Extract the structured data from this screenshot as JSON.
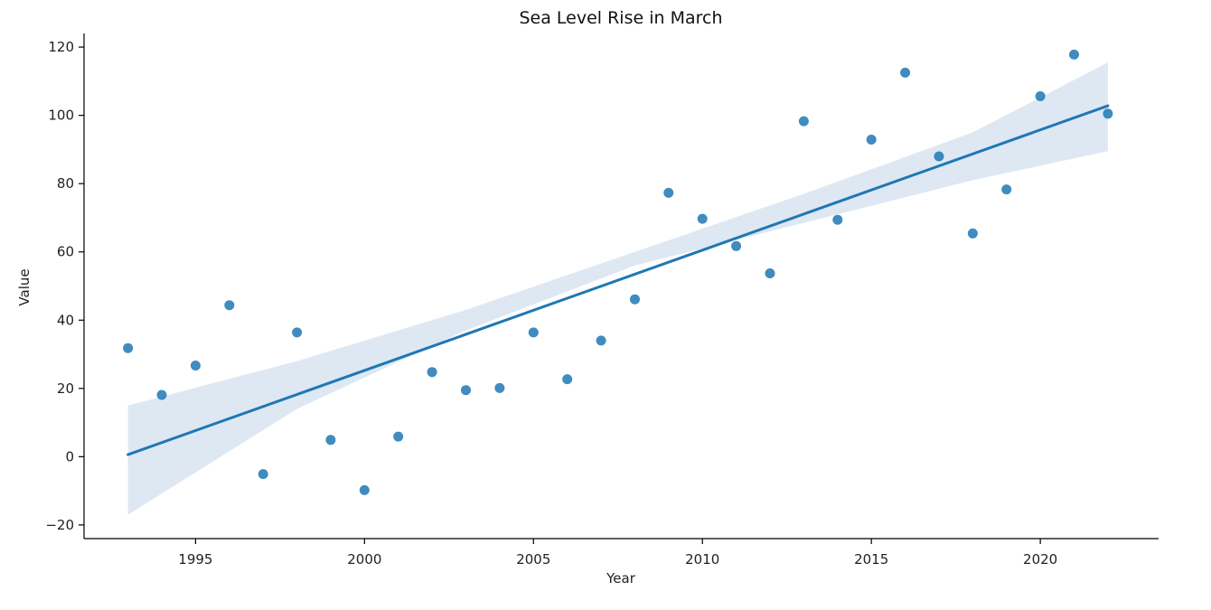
{
  "chart_data": {
    "type": "scatter",
    "title": "Sea Level Rise in March",
    "xlabel": "Year",
    "ylabel": "Value",
    "xlim": [
      1991.7,
      2023.5
    ],
    "ylim": [
      -24,
      124
    ],
    "xticks": [
      1995,
      2000,
      2005,
      2010,
      2015,
      2020
    ],
    "yticks": [
      -20,
      0,
      20,
      40,
      60,
      80,
      100,
      120
    ],
    "grid": false,
    "legend": "none",
    "series": [
      {
        "x": [
          1993,
          1994,
          1995,
          1996,
          1997,
          1998,
          1999,
          2000,
          2001,
          2002,
          2003,
          2004,
          2005,
          2006,
          2007,
          2008,
          2009,
          2010,
          2011,
          2012,
          2013,
          2014,
          2015,
          2016,
          2017,
          2018,
          2019,
          2020,
          2021,
          2022
        ],
        "values": [
          31.8,
          18.1,
          26.7,
          44.4,
          -5.1,
          36.4,
          4.9,
          -9.8,
          5.9,
          24.8,
          19.5,
          20.1,
          36.4,
          22.7,
          34.0,
          46.1,
          77.3,
          69.7,
          61.7,
          53.7,
          98.3,
          69.4,
          92.9,
          112.5,
          88.0,
          65.4,
          78.3,
          105.6,
          117.8,
          100.5
        ]
      }
    ],
    "regression": {
      "x": [
        1993,
        2022
      ],
      "values": [
        0.6,
        102.8
      ]
    },
    "confidence_band": {
      "x": [
        1993,
        1998,
        2003,
        2008,
        2013,
        2018,
        2022
      ],
      "lower": [
        -17,
        14,
        37,
        56,
        68.5,
        81,
        89.5
      ],
      "upper": [
        15,
        28,
        43,
        60,
        77,
        95,
        115.5
      ]
    },
    "colors": {
      "points": "#1f77b4",
      "line": "#1f77b4",
      "band": "#dae6f2",
      "axis": "#000000",
      "text": "#222222"
    }
  }
}
